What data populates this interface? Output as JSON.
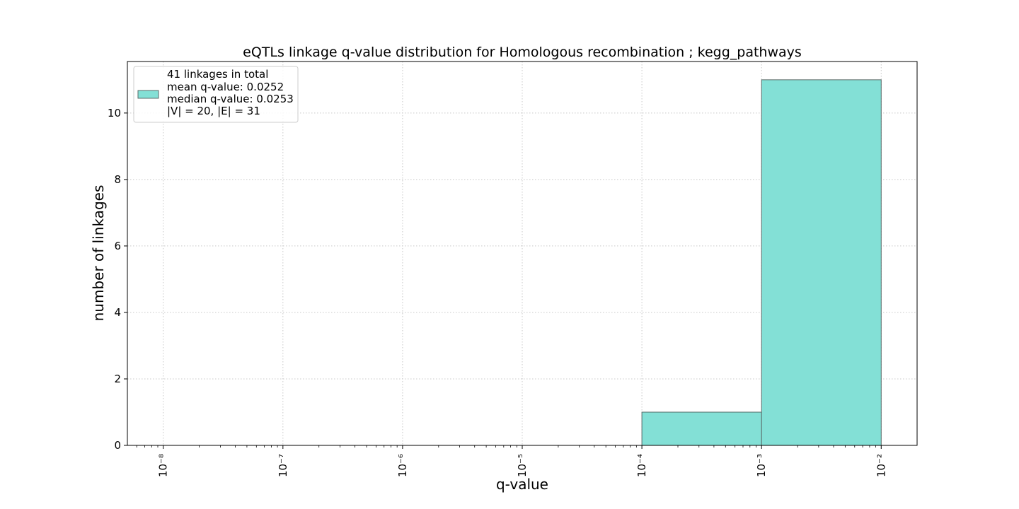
{
  "chart_data": {
    "type": "bar",
    "title": "eQTLs linkage q-value distribution for Homologous recombination ; kegg_pathways",
    "xlabel": "q-value",
    "ylabel": "number of linkages",
    "x_scale": "log",
    "x_tick_exponents": [
      -8,
      -7,
      -6,
      -5,
      -4,
      -3,
      -2
    ],
    "x_tick_labels": [
      "10⁻⁸",
      "10⁻⁷",
      "10⁻⁶",
      "10⁻⁵",
      "10⁻⁴",
      "10⁻³",
      "10⁻²"
    ],
    "xlim_exponents": [
      -8.3,
      -1.7
    ],
    "ylim": [
      0,
      11.55
    ],
    "y_ticks": [
      0,
      2,
      4,
      6,
      8,
      10
    ],
    "y_tick_labels": [
      "0",
      "2",
      "4",
      "6",
      "8",
      "10"
    ],
    "bins": [
      {
        "from_exp": -4,
        "to_exp": -3,
        "count": 1
      },
      {
        "from_exp": -3,
        "to_exp": -2,
        "count": 11
      }
    ],
    "bar_color": "#83e0d6",
    "bar_edge_color": "#5a6b69",
    "grid": true,
    "legend": {
      "location": "upper-left",
      "lines": [
        "41 linkages in total",
        "mean q-value: 0.0252",
        "median q-value: 0.0253",
        "|V| = 20, |E| = 31"
      ]
    }
  }
}
